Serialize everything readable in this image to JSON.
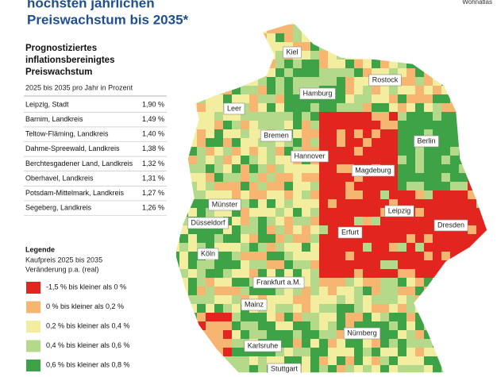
{
  "header": {
    "title_lines": [
      "höchsten jährlichen",
      "Preiswachstum bis 2035*"
    ],
    "source": "Wohnatlas"
  },
  "ranking": {
    "title_lines": [
      "Prognostiziertes",
      "inflationsbereinigtes",
      "Preiswachstum"
    ],
    "subtitle": "2025 bis 2035 pro Jahr in Prozent",
    "rows": [
      [
        "Leipzig, Stadt",
        "1,90 %"
      ],
      [
        "Barnim, Landkreis",
        "1,49 %"
      ],
      [
        "Teltow-Fläming, Landkreis",
        "1,40 %"
      ],
      [
        "Dahme-Spreewald, Landkreis",
        "1,38 %"
      ],
      [
        "Berchtesgadener Land, Landkreis",
        "1,32 %"
      ],
      [
        "Oberhavel, Landkreis",
        "1,31 %"
      ],
      [
        "Potsdam-Mittelmark, Landkreis",
        "1,27 %"
      ],
      [
        "Segeberg, Landkreis",
        "1,26 %"
      ]
    ]
  },
  "legend": {
    "title": "Legende",
    "subtitle_lines": [
      "Kaufpreis 2025 bis 2035",
      "Veränderung p.a. (real)"
    ],
    "items": [
      {
        "label": "-1,5 % bis kleiner als 0 %",
        "color": "#e3251f"
      },
      {
        "label": "0 % bis kleiner als 0,2 %",
        "color": "#f6b671"
      },
      {
        "label": "0,2 % bis kleiner als 0,4 %",
        "color": "#f3eda0"
      },
      {
        "label": "0,4 % bis kleiner als 0,6 %",
        "color": "#b5d98a"
      },
      {
        "label": "0,6 % bis kleiner als 0,8 %",
        "color": "#3ea346"
      }
    ]
  },
  "map": {
    "cities": [
      "Kiel",
      "Rostock",
      "Hamburg",
      "Leer",
      "Bremen",
      "Berlin",
      "Hannover",
      "Magdeburg",
      "Münster",
      "Leipzig",
      "Düsseldorf",
      "Erfurt",
      "Dresden",
      "Köln",
      "Frankfurt a.M.",
      "Mainz",
      "Nürnberg",
      "Karlsruhe",
      "Stuttgart"
    ]
  }
}
